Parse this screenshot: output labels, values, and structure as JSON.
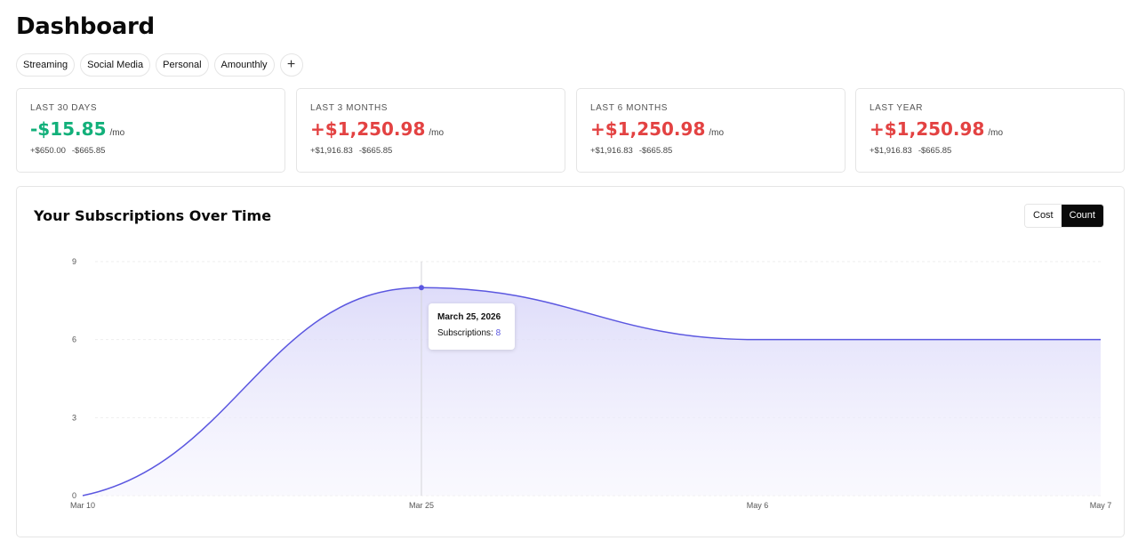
{
  "page": {
    "title": "Dashboard"
  },
  "tags": [
    {
      "label": "Streaming"
    },
    {
      "label": "Social Media"
    },
    {
      "label": "Personal"
    },
    {
      "label": "Amounthly"
    }
  ],
  "add_tag_label": "+",
  "cards": [
    {
      "label": "LAST 30 DAYS",
      "value": "-$15.85",
      "unit": "/mo",
      "income": "+$650.00",
      "expense": "-$665.85"
    },
    {
      "label": "LAST 3 MONTHS",
      "value": "+$1,250.98",
      "unit": "/mo",
      "income": "+$1,916.83",
      "expense": "-$665.85"
    },
    {
      "label": "LAST 6 MONTHS",
      "value": "+$1,250.98",
      "unit": "/mo",
      "income": "+$1,916.83",
      "expense": "-$665.85"
    },
    {
      "label": "LAST YEAR",
      "value": "+$1,250.98",
      "unit": "/mo",
      "income": "+$1,916.83",
      "expense": "-$665.85"
    }
  ],
  "chart_panel": {
    "title": "Your Subscriptions Over Time",
    "toggle": {
      "options": [
        "Cost",
        "Count"
      ],
      "selected": "Count"
    },
    "tooltip": {
      "date": "March 25, 2026",
      "series_label": "Subscriptions: ",
      "value": "8"
    }
  },
  "colors": {
    "positive_green": "#12b07a",
    "negative_red": "#e34242",
    "line": "#5b57e0",
    "area_fill": "#e6e4fb"
  },
  "chart_data": {
    "type": "area",
    "title": "Your Subscriptions Over Time",
    "xlabel": "",
    "ylabel": "",
    "x_ticks": [
      "Mar 10",
      "Mar 25",
      "May 6",
      "May 7"
    ],
    "y_ticks": [
      0,
      3,
      6,
      9
    ],
    "ylim": [
      0,
      9
    ],
    "grid": true,
    "series": [
      {
        "values": [
          0,
          8,
          6,
          6
        ]
      }
    ],
    "highlight": {
      "x": "Mar 25",
      "y": 8
    }
  }
}
